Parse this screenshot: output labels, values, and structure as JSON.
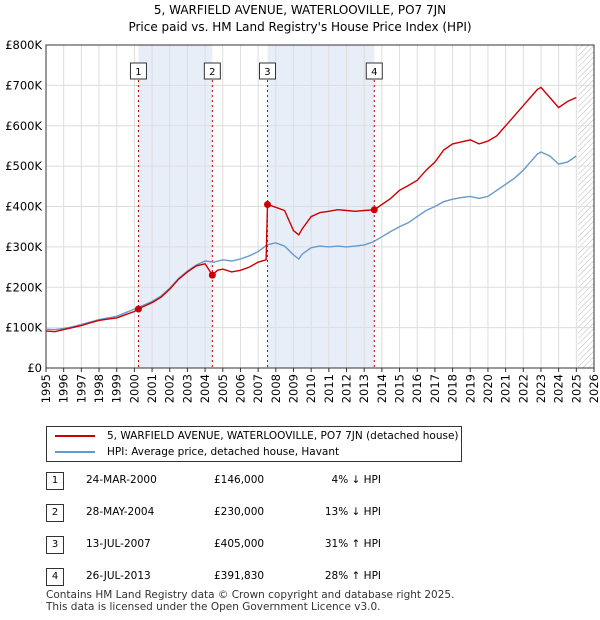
{
  "chart_data": {
    "type": "line",
    "title": "5, WARFIELD AVENUE, WATERLOOVILLE, PO7 7JN",
    "subtitle": "Price paid vs. HM Land Registry's House Price Index (HPI)",
    "xlim": [
      1995,
      2026
    ],
    "ylim": [
      0,
      800000
    ],
    "x_ticks": [
      "1995",
      "1996",
      "1997",
      "1998",
      "1999",
      "2000",
      "2001",
      "2002",
      "2003",
      "2004",
      "2005",
      "2006",
      "2007",
      "2008",
      "2009",
      "2010",
      "2011",
      "2012",
      "2013",
      "2014",
      "2015",
      "2016",
      "2017",
      "2018",
      "2019",
      "2020",
      "2021",
      "2022",
      "2023",
      "2024",
      "2025",
      "2026"
    ],
    "y_ticks": [
      {
        "value": 0,
        "label": "£0"
      },
      {
        "value": 100000,
        "label": "£100K"
      },
      {
        "value": 200000,
        "label": "£200K"
      },
      {
        "value": 300000,
        "label": "£300K"
      },
      {
        "value": 400000,
        "label": "£400K"
      },
      {
        "value": 500000,
        "label": "£500K"
      },
      {
        "value": 600000,
        "label": "£600K"
      },
      {
        "value": 700000,
        "label": "£700K"
      },
      {
        "value": 800000,
        "label": "£800K"
      }
    ],
    "data_end": 2025.1,
    "shaded_periods": [
      {
        "from": 2000.23,
        "to": 2004.41
      },
      {
        "from": 2007.53,
        "to": 2013.57
      }
    ],
    "series": [
      {
        "name": "5, WARFIELD AVENUE, WATERLOOVILLE, PO7 7JN (detached house)",
        "color": "#cc0000",
        "x": [
          1995.0,
          1995.5,
          1996.0,
          1996.5,
          1997.0,
          1997.5,
          1998.0,
          1998.5,
          1999.0,
          1999.5,
          2000.0,
          2000.23,
          2000.5,
          2001.0,
          2001.5,
          2002.0,
          2002.5,
          2003.0,
          2003.5,
          2004.0,
          2004.41,
          2004.7,
          2005.0,
          2005.5,
          2006.0,
          2006.5,
          2007.0,
          2007.45,
          2007.53,
          2008.0,
          2008.5,
          2009.0,
          2009.3,
          2009.5,
          2010.0,
          2010.5,
          2011.0,
          2011.5,
          2012.0,
          2012.5,
          2013.0,
          2013.57,
          2014.0,
          2014.5,
          2015.0,
          2015.5,
          2016.0,
          2016.5,
          2017.0,
          2017.5,
          2018.0,
          2018.5,
          2019.0,
          2019.5,
          2020.0,
          2020.5,
          2021.0,
          2021.5,
          2022.0,
          2022.5,
          2022.8,
          2023.0,
          2023.5,
          2024.0,
          2024.5,
          2025.0
        ],
        "y": [
          92000,
          90000,
          95000,
          100000,
          105000,
          112000,
          118000,
          121000,
          124000,
          132000,
          140000,
          146000,
          152000,
          162000,
          175000,
          195000,
          220000,
          238000,
          253000,
          258000,
          230000,
          242000,
          245000,
          238000,
          242000,
          250000,
          262000,
          268000,
          405000,
          398000,
          390000,
          340000,
          330000,
          345000,
          375000,
          385000,
          388000,
          392000,
          390000,
          388000,
          390000,
          391830,
          405000,
          420000,
          440000,
          452000,
          465000,
          490000,
          510000,
          540000,
          555000,
          560000,
          565000,
          555000,
          562000,
          575000,
          600000,
          625000,
          650000,
          675000,
          690000,
          695000,
          670000,
          645000,
          660000,
          670000
        ]
      },
      {
        "name": "HPI: Average price, detached house, Havant",
        "color": "#6699cc",
        "x": [
          1995.0,
          1995.5,
          1996.0,
          1996.5,
          1997.0,
          1997.5,
          1998.0,
          1998.5,
          1999.0,
          1999.5,
          2000.0,
          2000.5,
          2001.0,
          2001.5,
          2002.0,
          2002.5,
          2003.0,
          2003.5,
          2004.0,
          2004.5,
          2005.0,
          2005.5,
          2006.0,
          2006.5,
          2007.0,
          2007.5,
          2008.0,
          2008.5,
          2009.0,
          2009.3,
          2009.5,
          2010.0,
          2010.5,
          2011.0,
          2011.5,
          2012.0,
          2012.5,
          2013.0,
          2013.5,
          2014.0,
          2014.5,
          2015.0,
          2015.5,
          2016.0,
          2016.5,
          2017.0,
          2017.5,
          2018.0,
          2018.5,
          2019.0,
          2019.5,
          2020.0,
          2020.5,
          2021.0,
          2021.5,
          2022.0,
          2022.5,
          2022.8,
          2023.0,
          2023.5,
          2024.0,
          2024.5,
          2025.0
        ],
        "y": [
          96000,
          95000,
          98000,
          102000,
          108000,
          114000,
          120000,
          124000,
          128000,
          137000,
          146000,
          155000,
          165000,
          178000,
          198000,
          222000,
          240000,
          255000,
          265000,
          262000,
          268000,
          265000,
          270000,
          278000,
          288000,
          305000,
          310000,
          302000,
          280000,
          270000,
          282000,
          298000,
          302000,
          300000,
          302000,
          300000,
          302000,
          305000,
          312000,
          325000,
          338000,
          350000,
          360000,
          375000,
          390000,
          400000,
          412000,
          418000,
          422000,
          425000,
          420000,
          425000,
          440000,
          455000,
          470000,
          490000,
          515000,
          530000,
          535000,
          525000,
          505000,
          510000,
          525000
        ]
      }
    ],
    "sales": [
      {
        "num": "1",
        "x": 2000.23,
        "price": 146000
      },
      {
        "num": "2",
        "x": 2004.41,
        "price": 230000
      },
      {
        "num": "3",
        "x": 2007.53,
        "price": 405000
      },
      {
        "num": "4",
        "x": 2013.57,
        "price": 391830
      }
    ]
  },
  "legend": {
    "property_label": "5, WARFIELD AVENUE, WATERLOOVILLE, PO7 7JN (detached house)",
    "hpi_label": "HPI: Average price, detached house, Havant"
  },
  "sales_table": [
    {
      "num": "1",
      "date": "24-MAR-2000",
      "price": "£146,000",
      "hpi": "4% ↓ HPI"
    },
    {
      "num": "2",
      "date": "28-MAY-2004",
      "price": "£230,000",
      "hpi": "13% ↓ HPI"
    },
    {
      "num": "3",
      "date": "13-JUL-2007",
      "price": "£405,000",
      "hpi": "31% ↑ HPI"
    },
    {
      "num": "4",
      "date": "26-JUL-2013",
      "price": "£391,830",
      "hpi": "28% ↑ HPI"
    }
  ],
  "footer": {
    "line1": "Contains HM Land Registry data © Crown copyright and database right 2025.",
    "line2": "This data is licensed under the Open Government Licence v3.0."
  }
}
